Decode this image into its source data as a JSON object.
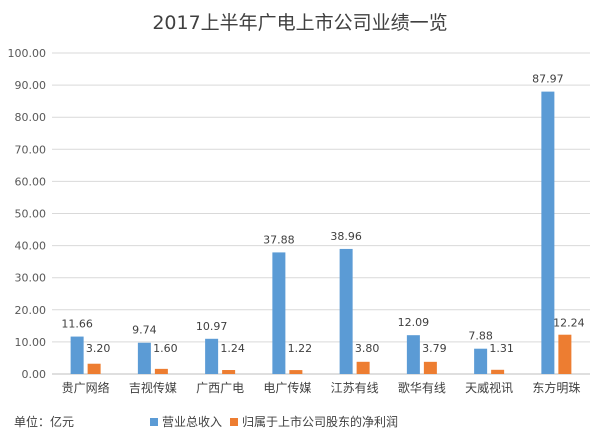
{
  "chart_data": {
    "type": "bar",
    "title": "2017上半年广电上市公司业绩一览",
    "categories": [
      "贵广网络",
      "吉视传媒",
      "广西广电",
      "电广传媒",
      "江苏有线",
      "歌华有线",
      "天威视讯",
      "东方明珠"
    ],
    "series": [
      {
        "name": "营业总收入",
        "values": [
          11.66,
          9.74,
          10.97,
          37.88,
          38.96,
          12.09,
          7.88,
          87.97
        ],
        "color": "#5b9bd5"
      },
      {
        "name": "归属于上市公司股东的净利润",
        "values": [
          3.2,
          1.6,
          1.24,
          1.22,
          3.8,
          3.79,
          1.31,
          12.24
        ],
        "color": "#ed7d31"
      }
    ],
    "ylim": [
      0,
      100
    ],
    "yticks": [
      "0.00",
      "10.00",
      "20.00",
      "30.00",
      "40.00",
      "50.00",
      "60.00",
      "70.00",
      "80.00",
      "90.00",
      "100.00"
    ],
    "grid": true,
    "legend_position": "bottom",
    "unit_note": "单位：亿元"
  }
}
